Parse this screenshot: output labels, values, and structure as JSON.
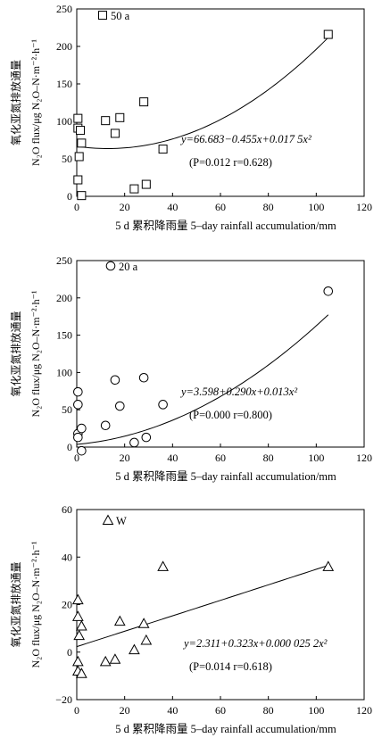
{
  "chart_data": [
    {
      "type": "scatter",
      "panel_label": "50 a",
      "marker": "square",
      "xlabel": "5 d 累积降雨量 5–day rainfall accumulation/mm",
      "ylabel_cn": "氧化亚氮排放通量",
      "ylabel_en": "N₂O flux/μg N₂O–N·m⁻²·h⁻¹",
      "xlim": [
        0,
        120
      ],
      "ylim": [
        0,
        250
      ],
      "xticks": [
        "0",
        "20",
        "40",
        "60",
        "80",
        "100",
        "120"
      ],
      "yticks": [
        "0",
        "50",
        "100",
        "150",
        "200",
        "250"
      ],
      "points": [
        {
          "x": 0.5,
          "y": 104
        },
        {
          "x": 0.5,
          "y": 91
        },
        {
          "x": 1.5,
          "y": 88
        },
        {
          "x": 2,
          "y": 71
        },
        {
          "x": 1,
          "y": 53
        },
        {
          "x": 0.5,
          "y": 22
        },
        {
          "x": 2,
          "y": 1
        },
        {
          "x": 12,
          "y": 101
        },
        {
          "x": 16,
          "y": 84
        },
        {
          "x": 18,
          "y": 105
        },
        {
          "x": 24,
          "y": 10
        },
        {
          "x": 28,
          "y": 126
        },
        {
          "x": 29,
          "y": 16
        },
        {
          "x": 36,
          "y": 63
        },
        {
          "x": 105,
          "y": 216
        }
      ],
      "fit": {
        "a": 66.683,
        "b": -0.455,
        "c": 0.0175,
        "x_range": [
          0,
          105
        ]
      },
      "equation": "y=66.683−0.455x+0.017 5x²",
      "stats": "(P=0.012  r=0.628)"
    },
    {
      "type": "scatter",
      "panel_label": "20 a",
      "marker": "circle",
      "xlabel": "5 d 累积降雨量 5–day rainfall accumulation/mm",
      "ylabel_cn": "氧化亚氮排放通量",
      "ylabel_en": "N₂O flux/μg N₂O–N·m⁻²·h⁻¹",
      "xlim": [
        0,
        120
      ],
      "ylim": [
        0,
        250
      ],
      "xticks": [
        "0",
        "20",
        "40",
        "60",
        "80",
        "100",
        "120"
      ],
      "yticks": [
        "0",
        "50",
        "100",
        "150",
        "200",
        "250"
      ],
      "points": [
        {
          "x": 0.5,
          "y": 74
        },
        {
          "x": 0.5,
          "y": 57
        },
        {
          "x": 0.5,
          "y": 18
        },
        {
          "x": 0.5,
          "y": 13
        },
        {
          "x": 2,
          "y": 25
        },
        {
          "x": 2,
          "y": -5
        },
        {
          "x": 12,
          "y": 29
        },
        {
          "x": 16,
          "y": 90
        },
        {
          "x": 18,
          "y": 55
        },
        {
          "x": 24,
          "y": 6
        },
        {
          "x": 28,
          "y": 93
        },
        {
          "x": 29,
          "y": 13
        },
        {
          "x": 36,
          "y": 57
        },
        {
          "x": 105,
          "y": 209
        }
      ],
      "fit": {
        "a": 3.598,
        "b": 0.29,
        "c": 0.013,
        "x_range": [
          0,
          105
        ]
      },
      "equation": "y=3.598+0.290x+0.013x²",
      "stats": "(P=0.000  r=0.800)"
    },
    {
      "type": "scatter",
      "panel_label": "W",
      "marker": "triangle",
      "xlabel": "5 d 累积降雨量 5–day rainfall accumulation/mm",
      "ylabel_cn": "氧化亚氮排放通量",
      "ylabel_en": "N₂O flux/μg N₂O–N·m⁻²·h⁻¹",
      "xlim": [
        0,
        120
      ],
      "ylim": [
        -20,
        60
      ],
      "xticks": [
        "0",
        "20",
        "40",
        "60",
        "80",
        "100",
        "120"
      ],
      "yticks": [
        "−20",
        "0",
        "20",
        "40",
        "60"
      ],
      "points": [
        {
          "x": 0.5,
          "y": 22
        },
        {
          "x": 0.5,
          "y": 15
        },
        {
          "x": 1,
          "y": 7
        },
        {
          "x": 2,
          "y": 11
        },
        {
          "x": 0.5,
          "y": -4
        },
        {
          "x": 0.5,
          "y": -8
        },
        {
          "x": 2,
          "y": -9
        },
        {
          "x": 12,
          "y": -4
        },
        {
          "x": 16,
          "y": -3
        },
        {
          "x": 18,
          "y": 13
        },
        {
          "x": 24,
          "y": 1
        },
        {
          "x": 28,
          "y": 12
        },
        {
          "x": 29,
          "y": 5
        },
        {
          "x": 36,
          "y": 36
        },
        {
          "x": 105,
          "y": 36
        }
      ],
      "fit": {
        "a": 2.311,
        "b": 0.323,
        "c": 2.5e-05,
        "x_range": [
          0,
          105
        ]
      },
      "equation": "y=2.311+0.323x+0.000 025 2x²",
      "stats": "(P=0.014  r=0.618)"
    }
  ]
}
